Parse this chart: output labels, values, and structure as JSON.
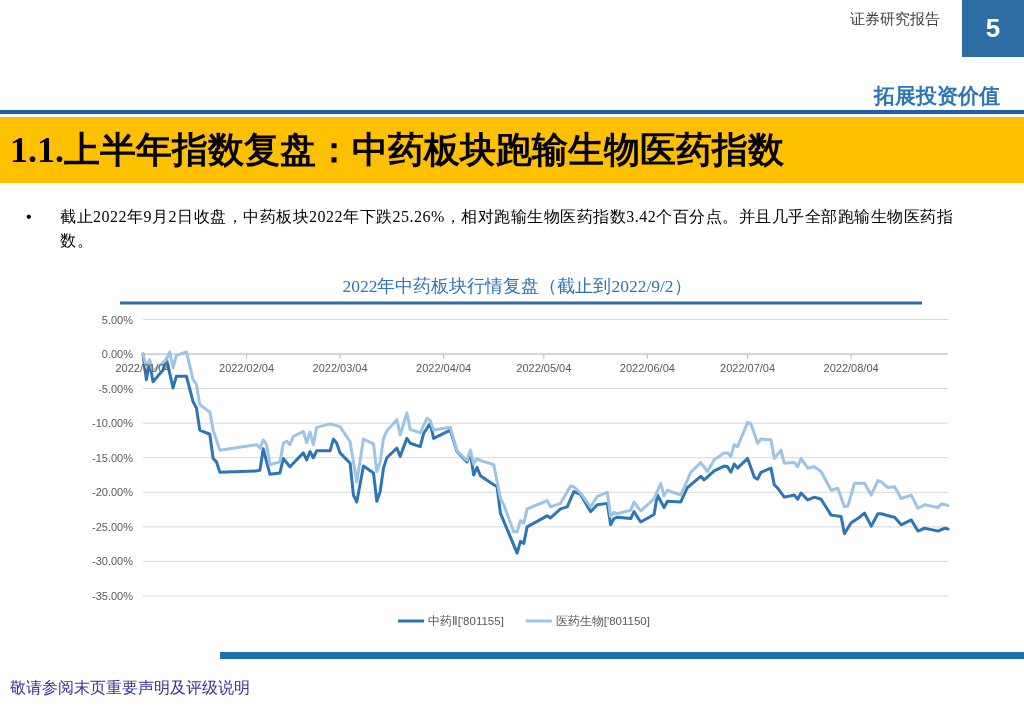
{
  "chart_data": {
    "type": "line",
    "title": "1.1.上半年指数复盘：中药板块跑输生物医药指数",
    "subtitle": "2022年中药板块行情复盘（截止到2022/9/2）",
    "annotations": [
      "证券研究报告",
      "5",
      "拓展投资价值",
      "•",
      "截止2022年9月2日收盘，中药板块2022年下跌25.26%，相对跑输生物医药指数3.42个百分点。并且几乎全部跑输生物医药指数。",
      "敬请参阅末页重要声明及评级说明"
    ],
    "xlim": [
      "2022-01-04",
      "2022-09-02"
    ],
    "xticks": [
      {
        "value": "2022-01-04",
        "label": "2022/01/04"
      },
      {
        "value": "2022-02-04",
        "label": "2022/02/04"
      },
      {
        "value": "2022-03-04",
        "label": "2022/03/04"
      },
      {
        "value": "2022-04-04",
        "label": "2022/04/04"
      },
      {
        "value": "2022-05-04",
        "label": "2022/05/04"
      },
      {
        "value": "2022-06-04",
        "label": "2022/06/04"
      },
      {
        "value": "2022-07-04",
        "label": "2022/07/04"
      },
      {
        "value": "2022-08-04",
        "label": "2022/08/04"
      }
    ],
    "ylim": [
      -35,
      5
    ],
    "yticks": [
      {
        "value": 5,
        "label": "5.00%"
      },
      {
        "value": 0,
        "label": "0.00%"
      },
      {
        "value": -5,
        "label": "-5.00%"
      },
      {
        "value": -10,
        "label": "-10.00%"
      },
      {
        "value": -15,
        "label": "-15.00%"
      },
      {
        "value": -20,
        "label": "-20.00%"
      },
      {
        "value": -25,
        "label": "-25.00%"
      },
      {
        "value": -30,
        "label": "-30.00%"
      },
      {
        "value": -35,
        "label": "-35.00%"
      }
    ],
    "grid": "y",
    "legend": "bottom",
    "series": [
      {
        "name": "中药Ⅱ['801155]",
        "color": "#2e75b6",
        "x": [
          "2022-01-04",
          "2022-01-05",
          "2022-01-06",
          "2022-01-07",
          "2022-01-10",
          "2022-01-11",
          "2022-01-13",
          "2022-01-14",
          "2022-01-17",
          "2022-01-19",
          "2022-01-20",
          "2022-01-21",
          "2022-01-24",
          "2022-01-25",
          "2022-01-26",
          "2022-01-27",
          "2022-02-07",
          "2022-02-08",
          "2022-02-09",
          "2022-02-11",
          "2022-02-14",
          "2022-02-15",
          "2022-02-17",
          "2022-02-21",
          "2022-02-22",
          "2022-02-23",
          "2022-02-24",
          "2022-02-25",
          "2022-03-01",
          "2022-03-02",
          "2022-03-03",
          "2022-03-04",
          "2022-03-07",
          "2022-03-08",
          "2022-03-09",
          "2022-03-11",
          "2022-03-14",
          "2022-03-15",
          "2022-03-16",
          "2022-03-17",
          "2022-03-18",
          "2022-03-21",
          "2022-03-22",
          "2022-03-24",
          "2022-03-25",
          "2022-03-28",
          "2022-03-29",
          "2022-03-31",
          "2022-04-01",
          "2022-04-06",
          "2022-04-08",
          "2022-04-11",
          "2022-04-12",
          "2022-04-13",
          "2022-04-14",
          "2022-04-15",
          "2022-04-19",
          "2022-04-20",
          "2022-04-21",
          "2022-04-26",
          "2022-04-27",
          "2022-04-28",
          "2022-04-29",
          "2022-05-05",
          "2022-05-06",
          "2022-05-09",
          "2022-05-11",
          "2022-05-13",
          "2022-05-15",
          "2022-05-18",
          "2022-05-20",
          "2022-05-23",
          "2022-05-24",
          "2022-05-25",
          "2022-05-26",
          "2022-05-30",
          "2022-05-31",
          "2022-06-02",
          "2022-06-06",
          "2022-06-07",
          "2022-06-09",
          "2022-06-10",
          "2022-06-14",
          "2022-06-16",
          "2022-06-20",
          "2022-06-21",
          "2022-06-24",
          "2022-06-27",
          "2022-06-28",
          "2022-06-29",
          "2022-06-30",
          "2022-07-01",
          "2022-07-04",
          "2022-07-06",
          "2022-07-07",
          "2022-07-08",
          "2022-07-11",
          "2022-07-12",
          "2022-07-13",
          "2022-07-15",
          "2022-07-18",
          "2022-07-19",
          "2022-07-20",
          "2022-07-22",
          "2022-07-24",
          "2022-07-26",
          "2022-07-29",
          "2022-08-01",
          "2022-08-02",
          "2022-08-04",
          "2022-08-06",
          "2022-08-08",
          "2022-08-10",
          "2022-08-12",
          "2022-08-13",
          "2022-08-16",
          "2022-08-17",
          "2022-08-19",
          "2022-08-22",
          "2022-08-24",
          "2022-08-26",
          "2022-08-28",
          "2022-08-30",
          "2022-09-01",
          "2022-09-02"
        ],
        "values": [
          0.0,
          -3.7,
          -1.2,
          -4.0,
          -2.3,
          -0.7,
          -4.9,
          -3.2,
          -3.2,
          -6.9,
          -7.8,
          -11.0,
          -11.6,
          -15.1,
          -15.6,
          -17.1,
          -16.9,
          -16.8,
          -13.7,
          -17.4,
          -17.2,
          -15.1,
          -16.3,
          -14.3,
          -15.3,
          -14.1,
          -15.0,
          -14.0,
          -14.0,
          -12.3,
          -12.9,
          -14.3,
          -15.8,
          -20.4,
          -21.4,
          -16.2,
          -17.2,
          -21.3,
          -19.9,
          -16.5,
          -15.0,
          -13.6,
          -14.8,
          -12.2,
          -12.9,
          -13.4,
          -11.5,
          -10.0,
          -12.2,
          -11.0,
          -14.1,
          -15.6,
          -14.3,
          -17.5,
          -16.4,
          -17.6,
          -18.9,
          -19.2,
          -23.0,
          -28.8,
          -27.1,
          -27.4,
          -25.0,
          -23.4,
          -23.7,
          -22.4,
          -22.1,
          -19.9,
          -20.3,
          -22.8,
          -21.8,
          -21.6,
          -24.7,
          -23.8,
          -23.6,
          -23.8,
          -22.8,
          -24.3,
          -23.2,
          -20.4,
          -22.2,
          -21.3,
          -21.4,
          -19.3,
          -17.7,
          -18.2,
          -16.9,
          -16.2,
          -16.3,
          -17.1,
          -15.9,
          -16.5,
          -15.1,
          -17.8,
          -18.1,
          -17.1,
          -16.5,
          -18.9,
          -19.4,
          -20.7,
          -20.4,
          -21.0,
          -20.1,
          -21.1,
          -20.7,
          -21.0,
          -23.3,
          -23.5,
          -26.0,
          -24.4,
          -23.8,
          -23.0,
          -24.9,
          -23.1,
          -23.1,
          -23.5,
          -23.6,
          -24.7,
          -24.0,
          -25.6,
          -25.2,
          -25.4,
          -25.6,
          -25.2,
          -25.3
        ]
      },
      {
        "name": "医药生物['801150]",
        "color": "#9dc3e6",
        "x": [
          "2022-01-04",
          "2022-01-05",
          "2022-01-06",
          "2022-01-07",
          "2022-01-11",
          "2022-01-12",
          "2022-01-13",
          "2022-01-14",
          "2022-01-17",
          "2022-01-19",
          "2022-01-20",
          "2022-01-21",
          "2022-01-24",
          "2022-01-25",
          "2022-01-27",
          "2022-02-07",
          "2022-02-08",
          "2022-02-09",
          "2022-02-10",
          "2022-02-11",
          "2022-02-14",
          "2022-02-15",
          "2022-02-16",
          "2022-02-17",
          "2022-02-18",
          "2022-02-21",
          "2022-02-22",
          "2022-02-23",
          "2022-02-24",
          "2022-02-25",
          "2022-03-01",
          "2022-03-04",
          "2022-03-07",
          "2022-03-09",
          "2022-03-11",
          "2022-03-14",
          "2022-03-15",
          "2022-03-16",
          "2022-03-17",
          "2022-03-18",
          "2022-03-21",
          "2022-03-22",
          "2022-03-24",
          "2022-03-25",
          "2022-03-28",
          "2022-03-30",
          "2022-03-31",
          "2022-04-01",
          "2022-04-06",
          "2022-04-08",
          "2022-04-11",
          "2022-04-12",
          "2022-04-13",
          "2022-04-14",
          "2022-04-15",
          "2022-04-19",
          "2022-04-21",
          "2022-04-22",
          "2022-04-25",
          "2022-04-26",
          "2022-04-27",
          "2022-04-28",
          "2022-04-29",
          "2022-05-05",
          "2022-05-06",
          "2022-05-09",
          "2022-05-12",
          "2022-05-13",
          "2022-05-15",
          "2022-05-18",
          "2022-05-20",
          "2022-05-23",
          "2022-05-24",
          "2022-05-25",
          "2022-05-26",
          "2022-05-30",
          "2022-05-31",
          "2022-06-02",
          "2022-06-06",
          "2022-06-08",
          "2022-06-09",
          "2022-06-10",
          "2022-06-14",
          "2022-06-17",
          "2022-06-20",
          "2022-06-22",
          "2022-06-24",
          "2022-06-27",
          "2022-06-28",
          "2022-06-29",
          "2022-06-30",
          "2022-07-01",
          "2022-07-04",
          "2022-07-05",
          "2022-07-07",
          "2022-07-08",
          "2022-07-11",
          "2022-07-12",
          "2022-07-14",
          "2022-07-15",
          "2022-07-18",
          "2022-07-19",
          "2022-07-20",
          "2022-07-22",
          "2022-07-24",
          "2022-07-26",
          "2022-07-29",
          "2022-07-31",
          "2022-08-02",
          "2022-08-03",
          "2022-08-05",
          "2022-08-08",
          "2022-08-10",
          "2022-08-12",
          "2022-08-13",
          "2022-08-15",
          "2022-08-17",
          "2022-08-19",
          "2022-08-22",
          "2022-08-24",
          "2022-08-26",
          "2022-08-28",
          "2022-08-30",
          "2022-08-31",
          "2022-09-02"
        ],
        "values": [
          0.0,
          -1.8,
          -0.8,
          -2.5,
          -0.8,
          0.3,
          -2.0,
          -0.2,
          0.3,
          -3.7,
          -4.4,
          -7.3,
          -8.4,
          -11.0,
          -13.9,
          -13.1,
          -13.6,
          -12.4,
          -13.1,
          -16.0,
          -15.6,
          -12.9,
          -12.6,
          -13.1,
          -11.9,
          -11.2,
          -12.8,
          -11.3,
          -13.1,
          -10.6,
          -10.1,
          -10.5,
          -12.7,
          -18.5,
          -12.3,
          -13.0,
          -17.0,
          -15.6,
          -12.2,
          -11.1,
          -9.5,
          -11.7,
          -8.5,
          -10.9,
          -11.4,
          -9.3,
          -9.6,
          -11.0,
          -10.6,
          -14.0,
          -15.4,
          -13.9,
          -15.9,
          -15.1,
          -15.4,
          -16.0,
          -20.9,
          -21.8,
          -25.7,
          -25.7,
          -24.1,
          -24.5,
          -22.4,
          -21.2,
          -22.1,
          -21.6,
          -19.1,
          -19.2,
          -20.1,
          -22.1,
          -20.6,
          -20.0,
          -23.5,
          -22.9,
          -23.1,
          -22.6,
          -21.4,
          -22.7,
          -20.9,
          -18.7,
          -20.5,
          -19.7,
          -20.4,
          -17.1,
          -15.7,
          -17.0,
          -15.3,
          -14.3,
          -14.3,
          -14.8,
          -13.1,
          -13.4,
          -9.9,
          -10.1,
          -12.9,
          -12.3,
          -12.4,
          -15.1,
          -13.9,
          -15.8,
          -15.7,
          -16.3,
          -15.1,
          -16.5,
          -16.3,
          -17.0,
          -19.7,
          -19.4,
          -22.1,
          -22.0,
          -18.7,
          -18.7,
          -20.4,
          -18.3,
          -18.5,
          -19.3,
          -19.2,
          -20.9,
          -20.4,
          -22.3,
          -21.8,
          -22.0,
          -22.2,
          -21.7,
          -21.9
        ]
      }
    ]
  }
}
